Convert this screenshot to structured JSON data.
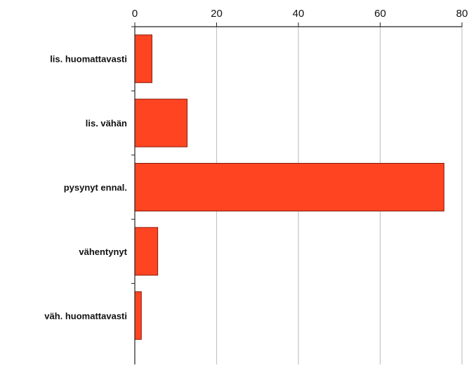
{
  "chart_data": {
    "type": "bar",
    "orientation": "horizontal",
    "title": "",
    "xlabel": "",
    "ylabel": "",
    "categories": [
      "lis. huomattavasti",
      "lis. vähän",
      "pysynyt ennal.",
      "vähentynyt",
      "väh. huomattavasti"
    ],
    "values": [
      4.2,
      12.8,
      75.6,
      5.6,
      1.6
    ],
    "xlim": [
      0,
      80
    ],
    "x_ticks": [
      "0",
      "20",
      "40",
      "60",
      "80"
    ],
    "axis_position": "top",
    "grid": true,
    "legend": "none",
    "colors": {
      "bar": "#ff4422",
      "bar_edge": "#8a1a0a",
      "grid": "#c4c4c4",
      "axis": "#222222"
    }
  }
}
